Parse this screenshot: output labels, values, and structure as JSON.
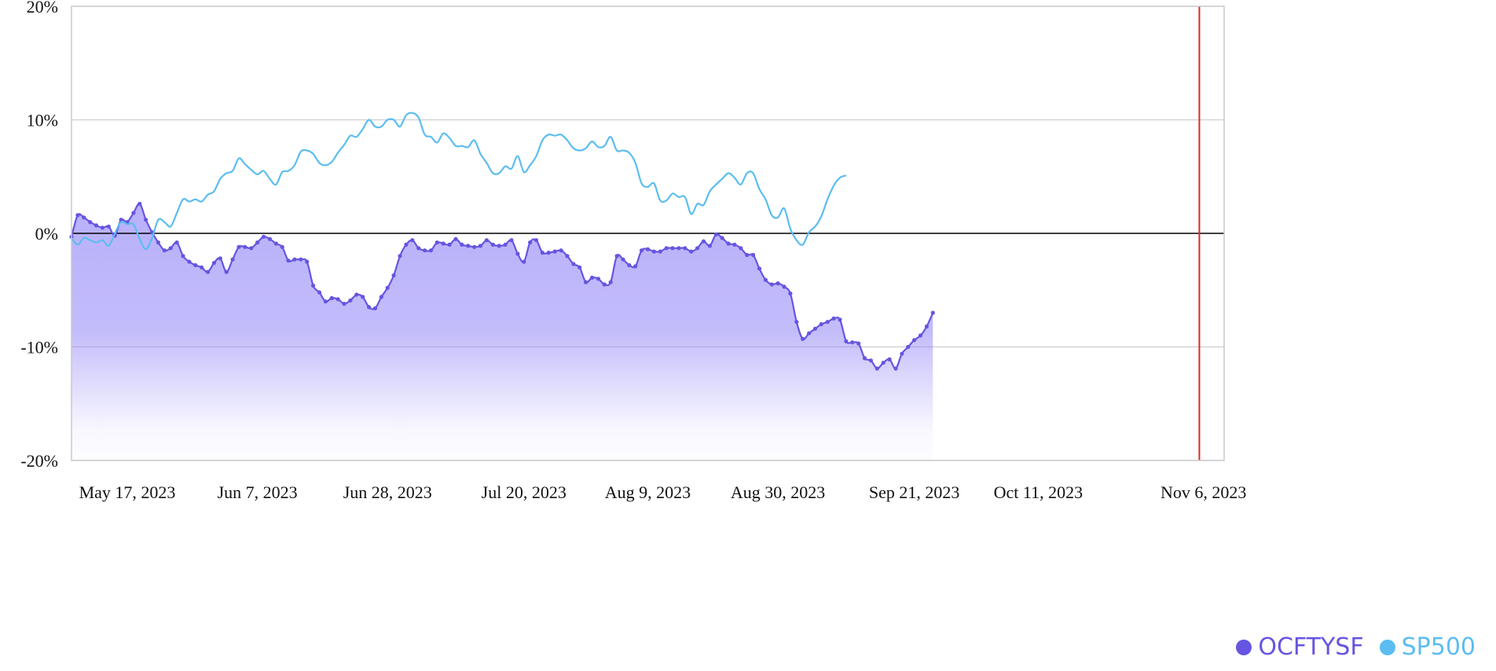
{
  "chart_data": {
    "type": "area",
    "y_unit": "%",
    "ylim": [
      -20,
      20
    ],
    "y_ticks": [
      {
        "value": 20,
        "label": "20%"
      },
      {
        "value": 10,
        "label": "10%"
      },
      {
        "value": 0,
        "label": "0%"
      },
      {
        "value": -10,
        "label": "-10%"
      },
      {
        "value": -20,
        "label": "-20%"
      }
    ],
    "x_range": [
      "2023-05-08",
      "2023-11-10"
    ],
    "x_ticks": [
      {
        "date": "2023-05-17",
        "label": "May 17, 2023"
      },
      {
        "date": "2023-06-07",
        "label": "Jun 7, 2023"
      },
      {
        "date": "2023-06-28",
        "label": "Jun 28, 2023"
      },
      {
        "date": "2023-07-20",
        "label": "Jul 20, 2023"
      },
      {
        "date": "2023-08-09",
        "label": "Aug 9, 2023"
      },
      {
        "date": "2023-08-30",
        "label": "Aug 30, 2023"
      },
      {
        "date": "2023-09-21",
        "label": "Sep 21, 2023"
      },
      {
        "date": "2023-10-11",
        "label": "Oct 11, 2023"
      },
      {
        "date": "2023-11-06",
        "label": "Nov 6, 2023"
      }
    ],
    "marker_date": "2023-11-06",
    "grid": true,
    "legend_position": "bottom-right",
    "series": [
      {
        "name": "OCFTYSF",
        "color": "#6655e0",
        "fill": "area",
        "points": [
          [
            "2023-05-08",
            -0.3
          ],
          [
            "2023-05-09",
            1.6
          ],
          [
            "2023-05-10",
            1.4
          ],
          [
            "2023-05-11",
            1.0
          ],
          [
            "2023-05-12",
            0.7
          ],
          [
            "2023-05-13",
            0.5
          ],
          [
            "2023-05-14",
            0.6
          ],
          [
            "2023-05-15",
            -0.2
          ],
          [
            "2023-05-16",
            1.2
          ],
          [
            "2023-05-17",
            1.0
          ],
          [
            "2023-05-18",
            1.8
          ],
          [
            "2023-05-19",
            2.6
          ],
          [
            "2023-05-20",
            1.2
          ],
          [
            "2023-05-21",
            0.1
          ],
          [
            "2023-05-22",
            -0.8
          ],
          [
            "2023-05-23",
            -1.5
          ],
          [
            "2023-05-24",
            -1.3
          ],
          [
            "2023-05-25",
            -0.8
          ],
          [
            "2023-05-26",
            -2.0
          ],
          [
            "2023-05-27",
            -2.5
          ],
          [
            "2023-05-28",
            -2.8
          ],
          [
            "2023-05-29",
            -3.0
          ],
          [
            "2023-05-30",
            -3.4
          ],
          [
            "2023-05-31",
            -2.6
          ],
          [
            "2023-06-01",
            -2.2
          ],
          [
            "2023-06-02",
            -3.4
          ],
          [
            "2023-06-03",
            -2.3
          ],
          [
            "2023-06-04",
            -1.2
          ],
          [
            "2023-06-05",
            -1.2
          ],
          [
            "2023-06-06",
            -1.3
          ],
          [
            "2023-06-07",
            -0.8
          ],
          [
            "2023-06-08",
            -0.3
          ],
          [
            "2023-06-09",
            -0.5
          ],
          [
            "2023-06-10",
            -0.9
          ],
          [
            "2023-06-11",
            -1.2
          ],
          [
            "2023-06-12",
            -2.4
          ],
          [
            "2023-06-13",
            -2.3
          ],
          [
            "2023-06-14",
            -2.3
          ],
          [
            "2023-06-15",
            -2.5
          ],
          [
            "2023-06-16",
            -4.6
          ],
          [
            "2023-06-17",
            -5.2
          ],
          [
            "2023-06-18",
            -6.0
          ],
          [
            "2023-06-19",
            -5.7
          ],
          [
            "2023-06-20",
            -5.8
          ],
          [
            "2023-06-21",
            -6.2
          ],
          [
            "2023-06-22",
            -5.9
          ],
          [
            "2023-06-23",
            -5.4
          ],
          [
            "2023-06-24",
            -5.6
          ],
          [
            "2023-06-25",
            -6.5
          ],
          [
            "2023-06-26",
            -6.6
          ],
          [
            "2023-06-27",
            -5.6
          ],
          [
            "2023-06-28",
            -4.8
          ],
          [
            "2023-06-29",
            -3.7
          ],
          [
            "2023-06-30",
            -2.0
          ],
          [
            "2023-07-01",
            -1.0
          ],
          [
            "2023-07-02",
            -0.6
          ],
          [
            "2023-07-03",
            -1.3
          ],
          [
            "2023-07-04",
            -1.5
          ],
          [
            "2023-07-05",
            -1.5
          ],
          [
            "2023-07-06",
            -0.8
          ],
          [
            "2023-07-07",
            -0.9
          ],
          [
            "2023-07-08",
            -1.0
          ],
          [
            "2023-07-09",
            -0.5
          ],
          [
            "2023-07-10",
            -1.0
          ],
          [
            "2023-07-11",
            -1.1
          ],
          [
            "2023-07-12",
            -1.2
          ],
          [
            "2023-07-13",
            -1.1
          ],
          [
            "2023-07-14",
            -0.6
          ],
          [
            "2023-07-15",
            -1.0
          ],
          [
            "2023-07-16",
            -1.1
          ],
          [
            "2023-07-17",
            -1.0
          ],
          [
            "2023-07-18",
            -0.6
          ],
          [
            "2023-07-19",
            -1.8
          ],
          [
            "2023-07-20",
            -2.5
          ],
          [
            "2023-07-21",
            -0.8
          ],
          [
            "2023-07-22",
            -0.6
          ],
          [
            "2023-07-23",
            -1.7
          ],
          [
            "2023-07-24",
            -1.7
          ],
          [
            "2023-07-25",
            -1.6
          ],
          [
            "2023-07-26",
            -1.5
          ],
          [
            "2023-07-27",
            -2.0
          ],
          [
            "2023-07-28",
            -2.7
          ],
          [
            "2023-07-29",
            -3.0
          ],
          [
            "2023-07-30",
            -4.3
          ],
          [
            "2023-07-31",
            -3.9
          ],
          [
            "2023-08-01",
            -4.0
          ],
          [
            "2023-08-02",
            -4.5
          ],
          [
            "2023-08-03",
            -4.3
          ],
          [
            "2023-08-04",
            -2.0
          ],
          [
            "2023-08-05",
            -2.3
          ],
          [
            "2023-08-06",
            -2.8
          ],
          [
            "2023-08-07",
            -2.9
          ],
          [
            "2023-08-08",
            -1.5
          ],
          [
            "2023-08-09",
            -1.4
          ],
          [
            "2023-08-10",
            -1.6
          ],
          [
            "2023-08-11",
            -1.6
          ],
          [
            "2023-08-12",
            -1.3
          ],
          [
            "2023-08-13",
            -1.3
          ],
          [
            "2023-08-14",
            -1.3
          ],
          [
            "2023-08-15",
            -1.3
          ],
          [
            "2023-08-16",
            -1.6
          ],
          [
            "2023-08-17",
            -1.3
          ],
          [
            "2023-08-18",
            -0.7
          ],
          [
            "2023-08-19",
            -1.1
          ],
          [
            "2023-08-20",
            -0.1
          ],
          [
            "2023-08-21",
            -0.4
          ],
          [
            "2023-08-22",
            -0.9
          ],
          [
            "2023-08-23",
            -1.0
          ],
          [
            "2023-08-24",
            -1.3
          ],
          [
            "2023-08-25",
            -1.9
          ],
          [
            "2023-08-26",
            -1.9
          ],
          [
            "2023-08-27",
            -3.1
          ],
          [
            "2023-08-28",
            -4.1
          ],
          [
            "2023-08-29",
            -4.5
          ],
          [
            "2023-08-30",
            -4.4
          ],
          [
            "2023-08-31",
            -4.7
          ],
          [
            "2023-09-01",
            -5.3
          ],
          [
            "2023-09-02",
            -7.8
          ],
          [
            "2023-09-03",
            -9.3
          ],
          [
            "2023-09-04",
            -8.8
          ],
          [
            "2023-09-05",
            -8.4
          ],
          [
            "2023-09-06",
            -8.0
          ],
          [
            "2023-09-07",
            -7.8
          ],
          [
            "2023-09-08",
            -7.5
          ],
          [
            "2023-09-09",
            -7.6
          ],
          [
            "2023-09-10",
            -9.5
          ],
          [
            "2023-09-11",
            -9.6
          ],
          [
            "2023-09-12",
            -9.7
          ],
          [
            "2023-09-13",
            -11.0
          ],
          [
            "2023-09-14",
            -11.2
          ],
          [
            "2023-09-15",
            -11.9
          ],
          [
            "2023-09-16",
            -11.4
          ],
          [
            "2023-09-17",
            -11.1
          ],
          [
            "2023-09-18",
            -11.9
          ],
          [
            "2023-09-19",
            -10.6
          ],
          [
            "2023-09-20",
            -10.0
          ],
          [
            "2023-09-21",
            -9.4
          ],
          [
            "2023-09-22",
            -9.0
          ],
          [
            "2023-09-23",
            -8.2
          ],
          [
            "2023-09-24",
            -7.0
          ]
        ]
      },
      {
        "name": "SP500",
        "color": "#5bbdf0",
        "fill": "none",
        "points": [
          [
            "2023-05-08",
            -0.4
          ],
          [
            "2023-05-09",
            -1.0
          ],
          [
            "2023-05-10",
            -0.4
          ],
          [
            "2023-05-11",
            -0.6
          ],
          [
            "2023-05-12",
            -0.8
          ],
          [
            "2023-05-13",
            -0.6
          ],
          [
            "2023-05-14",
            -1.1
          ],
          [
            "2023-05-15",
            0.0
          ],
          [
            "2023-05-16",
            1.0
          ],
          [
            "2023-05-17",
            0.8
          ],
          [
            "2023-05-18",
            0.8
          ],
          [
            "2023-05-19",
            -0.5
          ],
          [
            "2023-05-20",
            -1.4
          ],
          [
            "2023-05-21",
            -0.4
          ],
          [
            "2023-05-22",
            1.2
          ],
          [
            "2023-05-23",
            1.0
          ],
          [
            "2023-05-24",
            0.6
          ],
          [
            "2023-05-25",
            1.8
          ],
          [
            "2023-05-26",
            3.0
          ],
          [
            "2023-05-27",
            2.8
          ],
          [
            "2023-05-28",
            3.0
          ],
          [
            "2023-05-29",
            2.8
          ],
          [
            "2023-05-30",
            3.4
          ],
          [
            "2023-05-31",
            3.7
          ],
          [
            "2023-06-01",
            4.8
          ],
          [
            "2023-06-02",
            5.3
          ],
          [
            "2023-06-03",
            5.5
          ],
          [
            "2023-06-04",
            6.6
          ],
          [
            "2023-06-05",
            6.1
          ],
          [
            "2023-06-06",
            5.6
          ],
          [
            "2023-06-07",
            5.2
          ],
          [
            "2023-06-08",
            5.5
          ],
          [
            "2023-06-09",
            4.8
          ],
          [
            "2023-06-10",
            4.3
          ],
          [
            "2023-06-11",
            5.4
          ],
          [
            "2023-06-12",
            5.5
          ],
          [
            "2023-06-13",
            6.0
          ],
          [
            "2023-06-14",
            7.2
          ],
          [
            "2023-06-15",
            7.3
          ],
          [
            "2023-06-16",
            7.0
          ],
          [
            "2023-06-17",
            6.2
          ],
          [
            "2023-06-18",
            6.0
          ],
          [
            "2023-06-19",
            6.3
          ],
          [
            "2023-06-20",
            7.1
          ],
          [
            "2023-06-21",
            7.8
          ],
          [
            "2023-06-22",
            8.6
          ],
          [
            "2023-06-23",
            8.5
          ],
          [
            "2023-06-24",
            9.2
          ],
          [
            "2023-06-25",
            10.0
          ],
          [
            "2023-06-26",
            9.4
          ],
          [
            "2023-06-27",
            9.4
          ],
          [
            "2023-06-28",
            10.0
          ],
          [
            "2023-06-29",
            10.0
          ],
          [
            "2023-06-30",
            9.4
          ],
          [
            "2023-07-01",
            10.4
          ],
          [
            "2023-07-02",
            10.6
          ],
          [
            "2023-07-03",
            10.2
          ],
          [
            "2023-07-04",
            8.7
          ],
          [
            "2023-07-05",
            8.5
          ],
          [
            "2023-07-06",
            8.0
          ],
          [
            "2023-07-07",
            8.8
          ],
          [
            "2023-07-08",
            8.4
          ],
          [
            "2023-07-09",
            7.7
          ],
          [
            "2023-07-10",
            7.7
          ],
          [
            "2023-07-11",
            7.6
          ],
          [
            "2023-07-12",
            8.2
          ],
          [
            "2023-07-13",
            7.0
          ],
          [
            "2023-07-14",
            6.2
          ],
          [
            "2023-07-15",
            5.3
          ],
          [
            "2023-07-16",
            5.3
          ],
          [
            "2023-07-17",
            5.9
          ],
          [
            "2023-07-18",
            5.7
          ],
          [
            "2023-07-19",
            6.8
          ],
          [
            "2023-07-20",
            5.4
          ],
          [
            "2023-07-21",
            6.0
          ],
          [
            "2023-07-22",
            6.8
          ],
          [
            "2023-07-23",
            8.2
          ],
          [
            "2023-07-24",
            8.7
          ],
          [
            "2023-07-25",
            8.6
          ],
          [
            "2023-07-26",
            8.7
          ],
          [
            "2023-07-27",
            8.2
          ],
          [
            "2023-07-28",
            7.5
          ],
          [
            "2023-07-29",
            7.3
          ],
          [
            "2023-07-30",
            7.5
          ],
          [
            "2023-07-31",
            8.1
          ],
          [
            "2023-08-01",
            7.6
          ],
          [
            "2023-08-02",
            7.7
          ],
          [
            "2023-08-03",
            8.5
          ],
          [
            "2023-08-04",
            7.3
          ],
          [
            "2023-08-05",
            7.3
          ],
          [
            "2023-08-06",
            7.1
          ],
          [
            "2023-08-07",
            6.2
          ],
          [
            "2023-08-08",
            4.4
          ],
          [
            "2023-08-09",
            4.1
          ],
          [
            "2023-08-10",
            4.4
          ],
          [
            "2023-08-11",
            2.9
          ],
          [
            "2023-08-12",
            2.9
          ],
          [
            "2023-08-13",
            3.5
          ],
          [
            "2023-08-14",
            3.2
          ],
          [
            "2023-08-15",
            3.2
          ],
          [
            "2023-08-16",
            1.7
          ],
          [
            "2023-08-17",
            2.6
          ],
          [
            "2023-08-18",
            2.5
          ],
          [
            "2023-08-19",
            3.7
          ],
          [
            "2023-08-20",
            4.3
          ],
          [
            "2023-08-21",
            4.8
          ],
          [
            "2023-08-22",
            5.3
          ],
          [
            "2023-08-23",
            4.9
          ],
          [
            "2023-08-24",
            4.3
          ],
          [
            "2023-08-25",
            5.3
          ],
          [
            "2023-08-26",
            5.3
          ],
          [
            "2023-08-27",
            3.9
          ],
          [
            "2023-08-28",
            3.0
          ],
          [
            "2023-08-29",
            1.6
          ],
          [
            "2023-08-30",
            1.4
          ],
          [
            "2023-08-31",
            2.2
          ],
          [
            "2023-09-01",
            0.4
          ],
          [
            "2023-09-02",
            -0.6
          ],
          [
            "2023-09-03",
            -1.0
          ],
          [
            "2023-09-04",
            0.1
          ],
          [
            "2023-09-05",
            0.6
          ],
          [
            "2023-09-06",
            1.5
          ],
          [
            "2023-09-07",
            3.0
          ],
          [
            "2023-09-08",
            4.2
          ],
          [
            "2023-09-09",
            4.9
          ],
          [
            "2023-09-10",
            5.1
          ]
        ]
      }
    ]
  }
}
